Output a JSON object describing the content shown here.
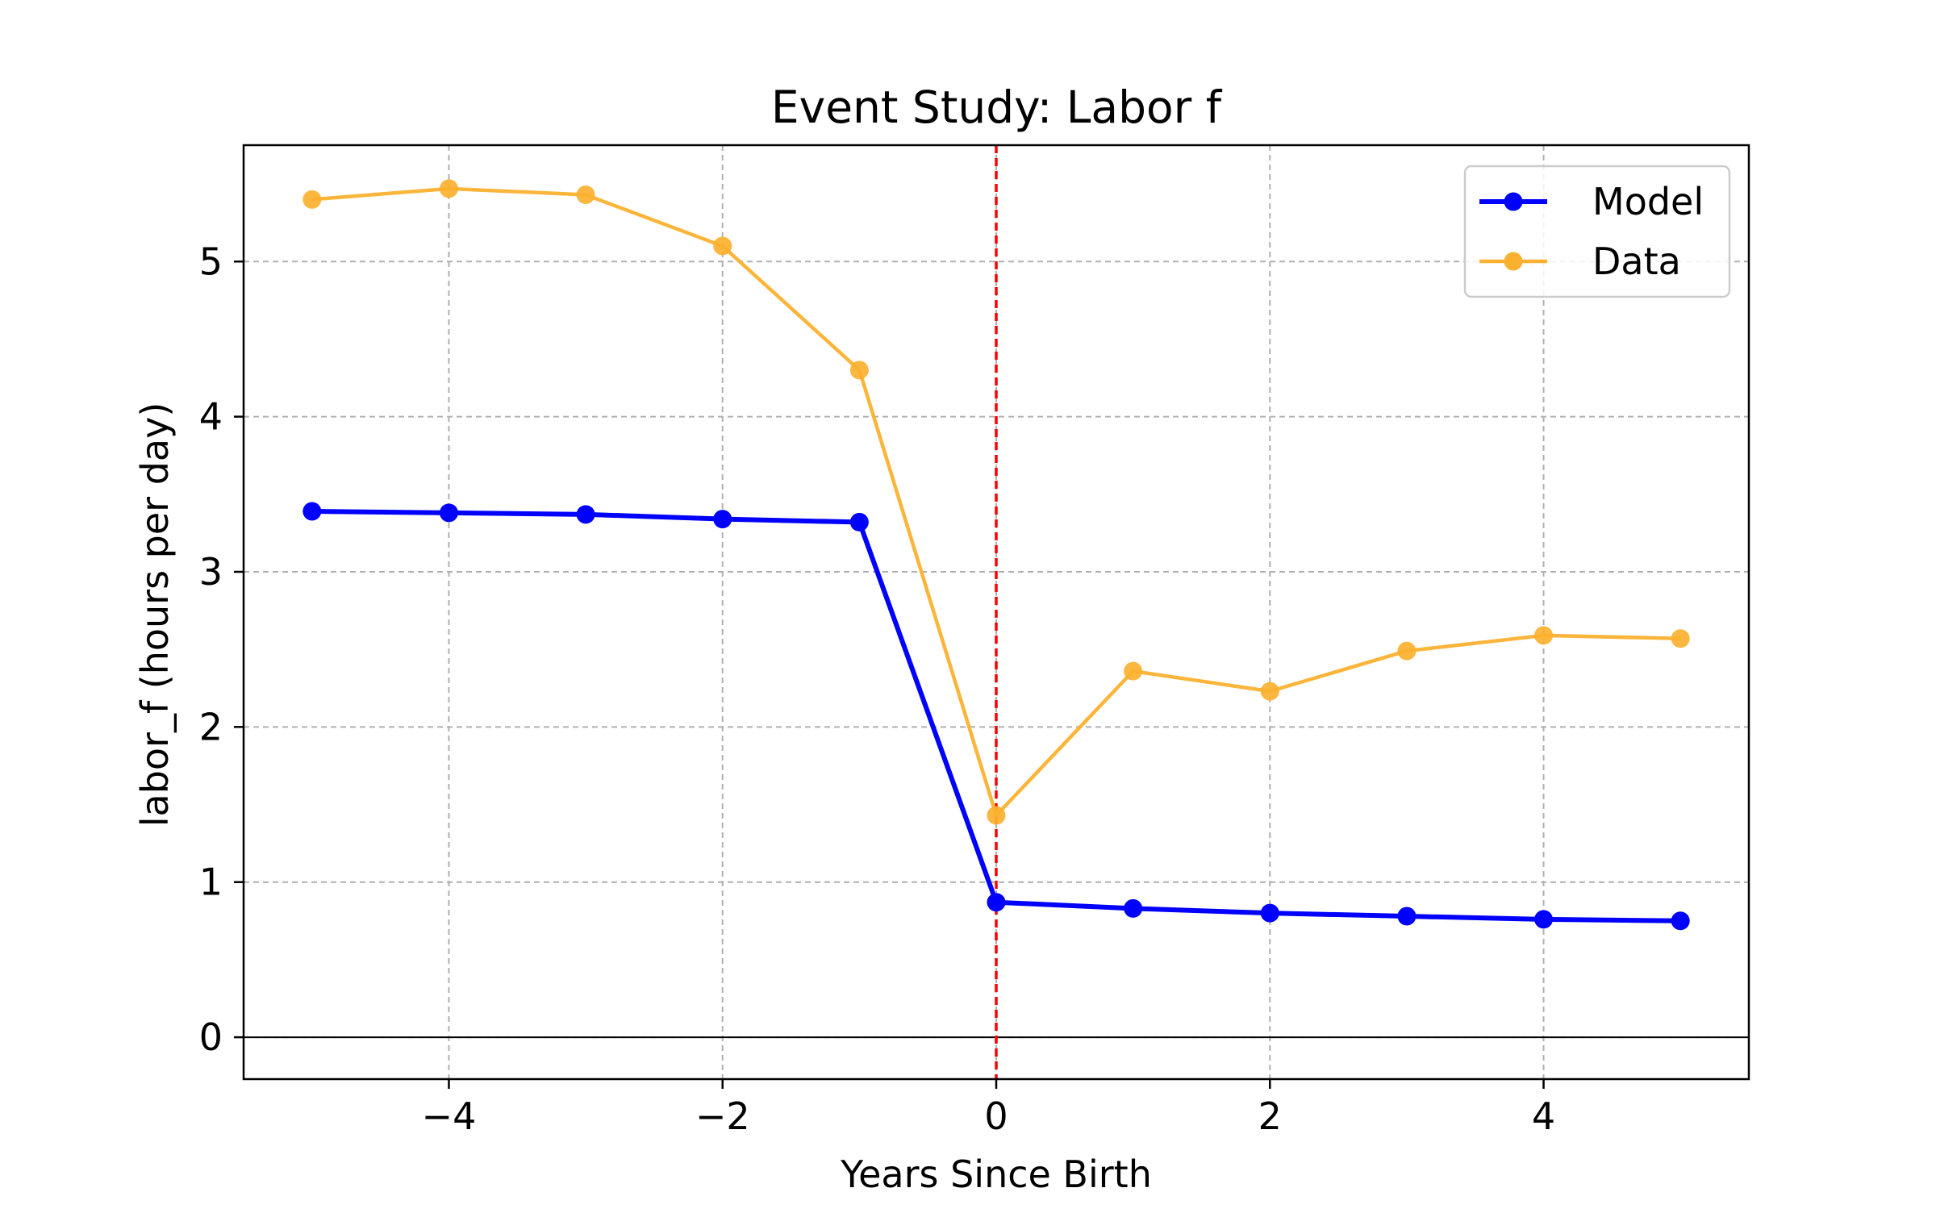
{
  "chart_data": {
    "type": "line",
    "title": "Event Study: Labor f",
    "xlabel": "Years Since Birth",
    "ylabel": "labor_f (hours per day)",
    "x": [
      -5,
      -4,
      -3,
      -2,
      -1,
      0,
      1,
      2,
      3,
      4,
      5
    ],
    "xlim": [
      -5.5,
      5.5
    ],
    "ylim": [
      -0.27,
      5.75
    ],
    "xticks": [
      -4,
      -2,
      0,
      2,
      4
    ],
    "xtick_labels": [
      "−4",
      "−2",
      "0",
      "2",
      "4"
    ],
    "yticks": [
      0,
      1,
      2,
      3,
      4,
      5
    ],
    "ytick_labels": [
      "0",
      "1",
      "2",
      "3",
      "4",
      "5"
    ],
    "grid": true,
    "legend_position": "upper right",
    "event_line": {
      "x": 0,
      "color": "#ff0000",
      "style": "dashed"
    },
    "zero_line": {
      "y": 0,
      "color": "#000000"
    },
    "series": [
      {
        "name": "Model",
        "color": "#0000ff",
        "values": [
          3.39,
          3.38,
          3.37,
          3.34,
          3.32,
          0.87,
          0.83,
          0.8,
          0.78,
          0.76,
          0.75
        ]
      },
      {
        "name": "Data",
        "color": "#fbb12f",
        "values": [
          5.4,
          5.47,
          5.43,
          5.1,
          4.3,
          1.43,
          2.36,
          2.23,
          2.49,
          2.59,
          2.57
        ]
      }
    ]
  }
}
